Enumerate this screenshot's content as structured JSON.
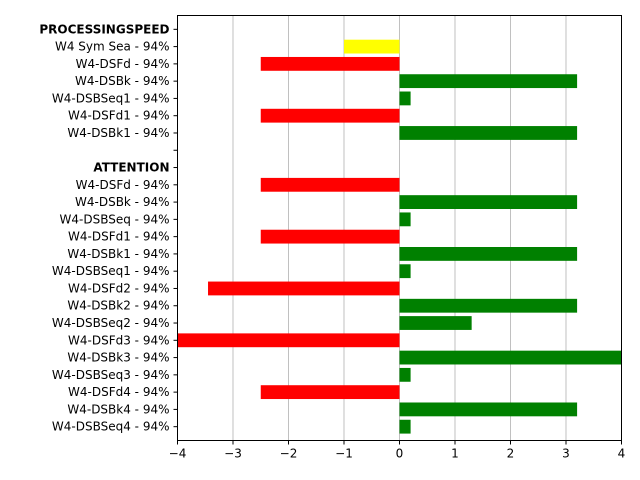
{
  "chart_data": {
    "type": "bar",
    "orientation": "horizontal",
    "xlim": [
      -4,
      4
    ],
    "xticks": [
      -4,
      -3,
      -2,
      -1,
      0,
      1,
      2,
      3,
      4
    ],
    "x_tick_labels": [
      "−4",
      "−3",
      "−2",
      "−1",
      "0",
      "1",
      "2",
      "3",
      "4"
    ],
    "grid": "vertical",
    "categories": [
      "PROCESSINGSPEED",
      "W4 Sym Sea - 94%",
      "W4-DSFd - 94%",
      "W4-DSBk - 94%",
      "W4-DSBSeq1 - 94%",
      "W4-DSFd1 - 94%",
      "W4-DSBk1 - 94%",
      "",
      "ATTENTION",
      "W4-DSFd - 94%",
      "W4-DSBk - 94%",
      "W4-DSBSeq - 94%",
      "W4-DSFd1 - 94%",
      "W4-DSBk1 - 94%",
      "W4-DSBSeq1 - 94%",
      "W4-DSFd2 - 94%",
      "W4-DSBk2 - 94%",
      "W4-DSBSeq2 - 94%",
      "W4-DSFd3 - 94%",
      "W4-DSBk3 - 94%",
      "W4-DSBSeq3 - 94%",
      "W4-DSFd4 - 94%",
      "W4-DSBk4 - 94%",
      "W4-DSBSeq4 - 94%"
    ],
    "header_rows": [
      0,
      8
    ],
    "values": [
      null,
      -1.0,
      -2.5,
      3.2,
      0.2,
      -2.5,
      3.2,
      null,
      null,
      -2.5,
      3.2,
      0.2,
      -2.5,
      3.2,
      0.2,
      -3.45,
      3.2,
      1.3,
      -4.0,
      4.0,
      0.2,
      -2.5,
      3.2,
      0.2
    ],
    "colors": [
      null,
      "#ffff00",
      "#ff0000",
      "#008000",
      "#008000",
      "#ff0000",
      "#008000",
      null,
      null,
      "#ff0000",
      "#008000",
      "#008000",
      "#ff0000",
      "#008000",
      "#008000",
      "#ff0000",
      "#008000",
      "#008000",
      "#ff0000",
      "#008000",
      "#008000",
      "#ff0000",
      "#008000",
      "#008000"
    ]
  }
}
